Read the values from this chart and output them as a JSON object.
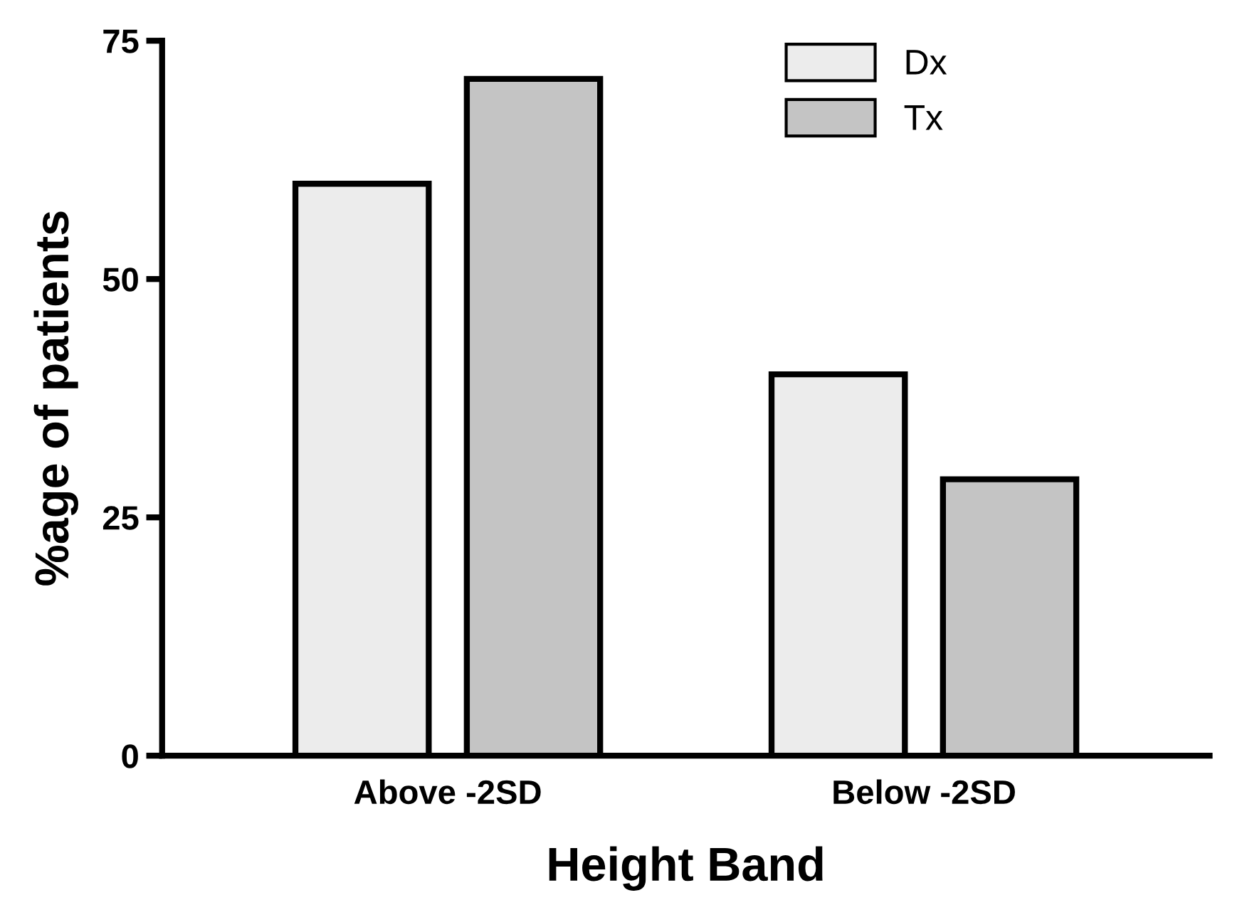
{
  "chart_data": {
    "type": "bar",
    "xlabel": "Height Band",
    "ylabel": "%age of patients",
    "categories": [
      "Above -2SD",
      "Below -2SD"
    ],
    "series": [
      {
        "name": "Dx",
        "color": "#ececec",
        "values": [
          60,
          40
        ]
      },
      {
        "name": "Tx",
        "color": "#c4c4c4",
        "values": [
          71,
          29
        ]
      }
    ],
    "ylim": [
      0,
      75
    ],
    "yticks": [
      0,
      25,
      50,
      75
    ],
    "grid": false,
    "legend": "top right"
  }
}
